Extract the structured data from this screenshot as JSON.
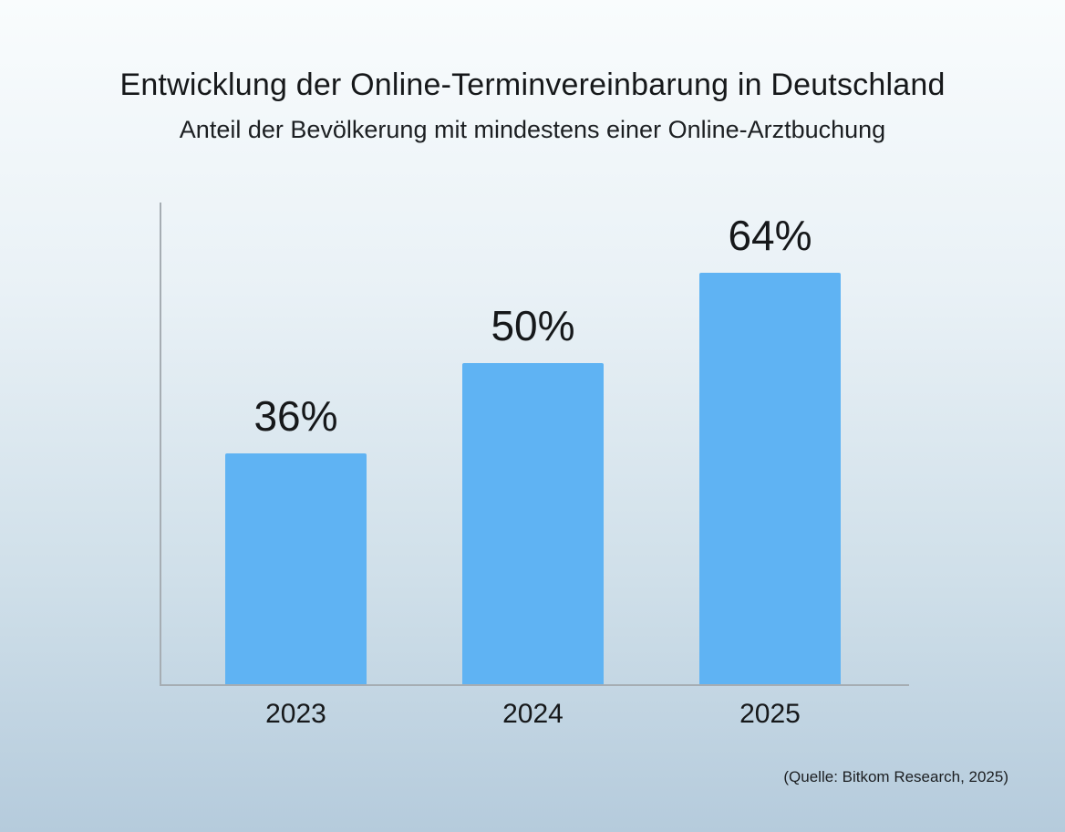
{
  "chart_data": {
    "type": "bar",
    "title": "Entwicklung der Online-Terminvereinbarung in Deutschland",
    "subtitle": "Anteil der Bevölkerung mit mindestens einer Online-Arztbuchung",
    "categories": [
      "2023",
      "2024",
      "2025"
    ],
    "values": [
      36,
      50,
      64
    ],
    "value_labels": [
      "36%",
      "50%",
      "64%"
    ],
    "xlabel": "",
    "ylabel": "",
    "ylim": [
      0,
      75
    ],
    "grid": false,
    "legend": false,
    "bar_color": "#5fb3f3",
    "axis_color": "#a6adb3",
    "text_color": "#16181a",
    "source": "(Quelle: Bitkom Research, 2025)"
  }
}
